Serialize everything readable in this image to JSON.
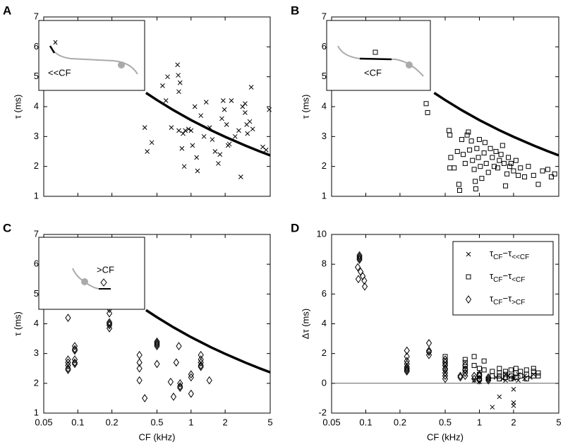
{
  "chart_data": [
    {
      "type": "scatter",
      "panel_label": "A",
      "ylabel": "τ (ms)",
      "inset_label": "<<CF",
      "x_log": true,
      "xlim": [
        0.05,
        5
      ],
      "ylim": [
        1,
        7
      ],
      "xticks": [
        0.05,
        0.1,
        0.2,
        0.5,
        1,
        2,
        5
      ],
      "yticks": [
        1,
        2,
        3,
        4,
        5,
        6,
        7
      ],
      "show_xtick_labels": false,
      "series": [
        {
          "type": "line",
          "color": "#000000",
          "x": [
            0.4,
            0.5,
            0.7,
            1,
            1.5,
            2,
            3,
            4,
            5
          ],
          "values": [
            4.46,
            4.22,
            3.88,
            3.55,
            3.21,
            2.99,
            2.7,
            2.51,
            2.37
          ]
        },
        {
          "marker": "x",
          "color": "#000000",
          "x": [
            0.39,
            0.41,
            0.45,
            0.56,
            0.6,
            0.62,
            0.67,
            0.76,
            0.77,
            0.8,
            0.78,
            0.78,
            0.83,
            0.85,
            0.87,
            0.89,
            0.95,
            1,
            1.03,
            1.08,
            1.12,
            1.14,
            1.22,
            1.3,
            1.36,
            1.46,
            1.54,
            1.63,
            1.74,
            1.8,
            1.87,
            1.92,
            1.97,
            2.06,
            2.12,
            2.18,
            2.27,
            2.45,
            2.64,
            2.75,
            2.85,
            3.0,
            3.1,
            3.0,
            3.15,
            3.3,
            3.4,
            3.5,
            4.3,
            4.6,
            4.9
          ],
          "values": [
            3.3,
            2.5,
            2.8,
            4.7,
            4.2,
            5.0,
            3.3,
            5.4,
            5.05,
            4.8,
            4.5,
            3.2,
            2.6,
            3.1,
            2.0,
            3.2,
            3.25,
            3.2,
            2.7,
            4.0,
            2.3,
            1.85,
            3.7,
            3.0,
            4.15,
            3.3,
            2.9,
            2.5,
            2.1,
            2.4,
            3.6,
            4.2,
            3.9,
            3.4,
            2.7,
            2.75,
            4.2,
            3.0,
            3.2,
            1.65,
            4.0,
            4.1,
            3.4,
            3.8,
            3.1,
            3.5,
            4.65,
            3.25,
            2.65,
            2.55,
            3.9
          ]
        }
      ]
    },
    {
      "type": "scatter",
      "panel_label": "B",
      "ylabel": "τ (ms)",
      "inset_label": "<CF",
      "x_log": true,
      "xlim": [
        0.05,
        5
      ],
      "ylim": [
        1,
        7
      ],
      "xticks": [
        0.05,
        0.1,
        0.2,
        0.5,
        1,
        2,
        5
      ],
      "yticks": [
        1,
        2,
        3,
        4,
        5,
        6,
        7
      ],
      "show_xtick_labels": false,
      "series": [
        {
          "type": "line",
          "color": "#000000",
          "x": [
            0.4,
            0.5,
            0.7,
            1,
            1.5,
            2,
            3,
            4,
            5
          ],
          "values": [
            4.46,
            4.22,
            3.88,
            3.55,
            3.21,
            2.99,
            2.7,
            2.51,
            2.37
          ]
        },
        {
          "marker": "square",
          "color": "#000000",
          "x": [
            0.34,
            0.35,
            0.54,
            0.55,
            0.56,
            0.55,
            0.6,
            0.64,
            0.66,
            0.67,
            0.7,
            0.72,
            0.75,
            0.78,
            0.8,
            0.82,
            0.85,
            0.87,
            0.9,
            0.92,
            0.93,
            0.95,
            0.98,
            1.0,
            1.02,
            1.05,
            1.1,
            1.12,
            1.15,
            1.2,
            1.25,
            1.3,
            1.35,
            1.4,
            1.45,
            1.5,
            1.55,
            1.6,
            1.65,
            1.7,
            1.75,
            1.8,
            1.85,
            1.9,
            2.0,
            2.1,
            2.2,
            2.3,
            2.5,
            2.7,
            3.0,
            3.3,
            3.6,
            4.0,
            4.3,
            4.6
          ],
          "values": [
            4.1,
            3.8,
            3.2,
            3.05,
            2.3,
            1.95,
            1.95,
            2.5,
            1.4,
            1.2,
            2.9,
            2.4,
            2.1,
            3.05,
            3.15,
            2.55,
            2.85,
            2.2,
            1.9,
            1.5,
            1.25,
            2.6,
            2.3,
            2.9,
            2.0,
            1.6,
            2.45,
            2.8,
            2.1,
            1.8,
            2.6,
            2.3,
            2.0,
            2.5,
            1.95,
            2.2,
            2.4,
            2.7,
            2.1,
            1.35,
            1.75,
            2.3,
            2.0,
            2.1,
            1.85,
            2.2,
            1.7,
            1.95,
            1.65,
            2.0,
            1.7,
            1.4,
            1.85,
            1.9,
            1.65,
            1.75
          ]
        }
      ]
    },
    {
      "type": "scatter",
      "panel_label": "C",
      "ylabel": "τ (ms)",
      "xlabel": "CF (kHz)",
      "inset_label": ">CF",
      "x_log": true,
      "xlim": [
        0.05,
        5
      ],
      "ylim": [
        1,
        7
      ],
      "xticks": [
        0.05,
        0.1,
        0.2,
        0.5,
        1,
        2,
        5
      ],
      "yticks": [
        1,
        2,
        3,
        4,
        5,
        6,
        7
      ],
      "show_xtick_labels": true,
      "series": [
        {
          "type": "line",
          "color": "#000000",
          "x": [
            0.4,
            0.5,
            0.7,
            1,
            1.5,
            2,
            3,
            4,
            5
          ],
          "values": [
            4.46,
            4.22,
            3.88,
            3.55,
            3.21,
            2.99,
            2.7,
            2.51,
            2.37
          ]
        },
        {
          "marker": "diamond",
          "color": "#000000",
          "x": [
            0.082,
            0.082,
            0.082,
            0.082,
            0.082,
            0.082,
            0.094,
            0.094,
            0.094,
            0.094,
            0.094,
            0.094,
            0.19,
            0.19,
            0.19,
            0.19,
            0.19,
            0.19,
            0.35,
            0.35,
            0.35,
            0.35,
            0.39,
            0.5,
            0.5,
            0.5,
            0.5,
            0.5,
            0.66,
            0.74,
            0.78,
            0.8,
            0.8,
            0.8,
            0.7,
            1.0,
            1.0,
            1.0,
            1.22,
            1.22,
            1.22,
            1.22,
            1.22,
            1.45
          ],
          "values": [
            4.2,
            2.8,
            2.7,
            2.6,
            2.5,
            2.45,
            3.25,
            3.15,
            3.1,
            2.8,
            2.7,
            2.65,
            4.5,
            4.35,
            4.05,
            4.0,
            3.95,
            3.85,
            2.95,
            2.7,
            2.5,
            2.1,
            1.5,
            3.4,
            3.35,
            3.3,
            3.25,
            2.65,
            2.05,
            2.7,
            3.25,
            2.0,
            1.9,
            1.85,
            1.55,
            2.3,
            2.2,
            1.65,
            2.95,
            2.8,
            2.7,
            2.6,
            2.55,
            2.1
          ]
        }
      ]
    },
    {
      "type": "scatter",
      "panel_label": "D",
      "ylabel": "Δτ (ms)",
      "xlabel": "CF (kHz)",
      "x_log": true,
      "xlim": [
        0.05,
        5
      ],
      "ylim": [
        -2,
        10
      ],
      "xticks": [
        0.05,
        0.1,
        0.2,
        0.5,
        1,
        2,
        5
      ],
      "yticks": [
        -2,
        0,
        2,
        4,
        6,
        8,
        10
      ],
      "show_xtick_labels": true,
      "zero_line": true,
      "legend": "upper right",
      "series": [
        {
          "name": "τCF−τ<<CF",
          "marker": "x",
          "color": "#000000",
          "x": [
            0.9,
            1.0,
            1.2,
            1.3,
            1.4,
            1.5,
            1.6,
            1.7,
            1.7,
            1.8,
            2.0,
            2.0,
            2.0,
            2.0,
            2.0,
            2.2,
            2.2,
            2.5,
            2.5,
            2.8,
            3.0
          ],
          "values": [
            0.2,
            0.1,
            0.3,
            -1.6,
            0.4,
            -0.9,
            0.3,
            0.6,
            0.2,
            0.5,
            -0.4,
            -1.3,
            -1.5,
            0.4,
            0.3,
            0.6,
            0.2,
            0.5,
            0.3,
            0.4,
            0.6
          ]
        },
        {
          "name": "τCF−τ<CF",
          "marker": "square",
          "color": "#000000",
          "x": [
            0.5,
            0.5,
            0.5,
            0.75,
            0.75,
            0.75,
            0.75,
            0.9,
            0.9,
            1.0,
            1.0,
            1.0,
            1.1,
            1.1,
            1.3,
            1.3,
            1.5,
            1.5,
            1.5,
            1.5,
            1.7,
            1.7,
            1.7,
            1.9,
            1.9,
            1.9,
            2.1,
            2.1,
            2.1,
            2.3,
            2.3,
            2.6,
            2.6,
            2.6,
            3.0,
            3.0,
            3.0,
            3.3,
            3.3
          ],
          "values": [
            1.8,
            1.5,
            1.3,
            1.6,
            1.4,
            1.0,
            0.9,
            1.8,
            1.2,
            1.0,
            0.6,
            0.3,
            1.5,
            0.9,
            0.8,
            0.5,
            1.0,
            0.7,
            0.5,
            0.3,
            0.8,
            0.6,
            0.4,
            0.9,
            0.5,
            0.3,
            1.0,
            0.7,
            0.4,
            0.8,
            0.5,
            0.9,
            0.6,
            0.3,
            1.0,
            0.8,
            0.5,
            0.7,
            0.5
          ]
        },
        {
          "name": "τCF−τ>CF",
          "marker": "diamond",
          "color": "#000000",
          "x": [
            0.088,
            0.088,
            0.088,
            0.088,
            0.085,
            0.09,
            0.094,
            0.086,
            0.097,
            0.098,
            0.23,
            0.23,
            0.23,
            0.23,
            0.23,
            0.23,
            0.23,
            0.23,
            0.36,
            0.36,
            0.36,
            0.36,
            0.5,
            0.5,
            0.5,
            0.5,
            0.5,
            0.5,
            0.5,
            0.5,
            0.68,
            0.68,
            0.75,
            0.75,
            0.75,
            0.75,
            0.9,
            0.9,
            1.0,
            1.0,
            1.0,
            1.0,
            1.2,
            1.2,
            1.2
          ],
          "values": [
            8.6,
            8.5,
            8.4,
            8.3,
            7.8,
            7.5,
            7.2,
            7.0,
            6.9,
            6.5,
            2.2,
            1.8,
            1.5,
            1.3,
            1.1,
            1.0,
            0.9,
            0.8,
            2.7,
            2.2,
            2.1,
            1.9,
            1.6,
            1.4,
            1.2,
            1.0,
            0.9,
            0.7,
            0.5,
            0.3,
            0.4,
            0.5,
            1.2,
            0.9,
            0.7,
            0.5,
            0.3,
            0.5,
            0.6,
            0.5,
            0.3,
            0.2,
            0.4,
            0.3,
            0.2
          ]
        }
      ]
    }
  ]
}
